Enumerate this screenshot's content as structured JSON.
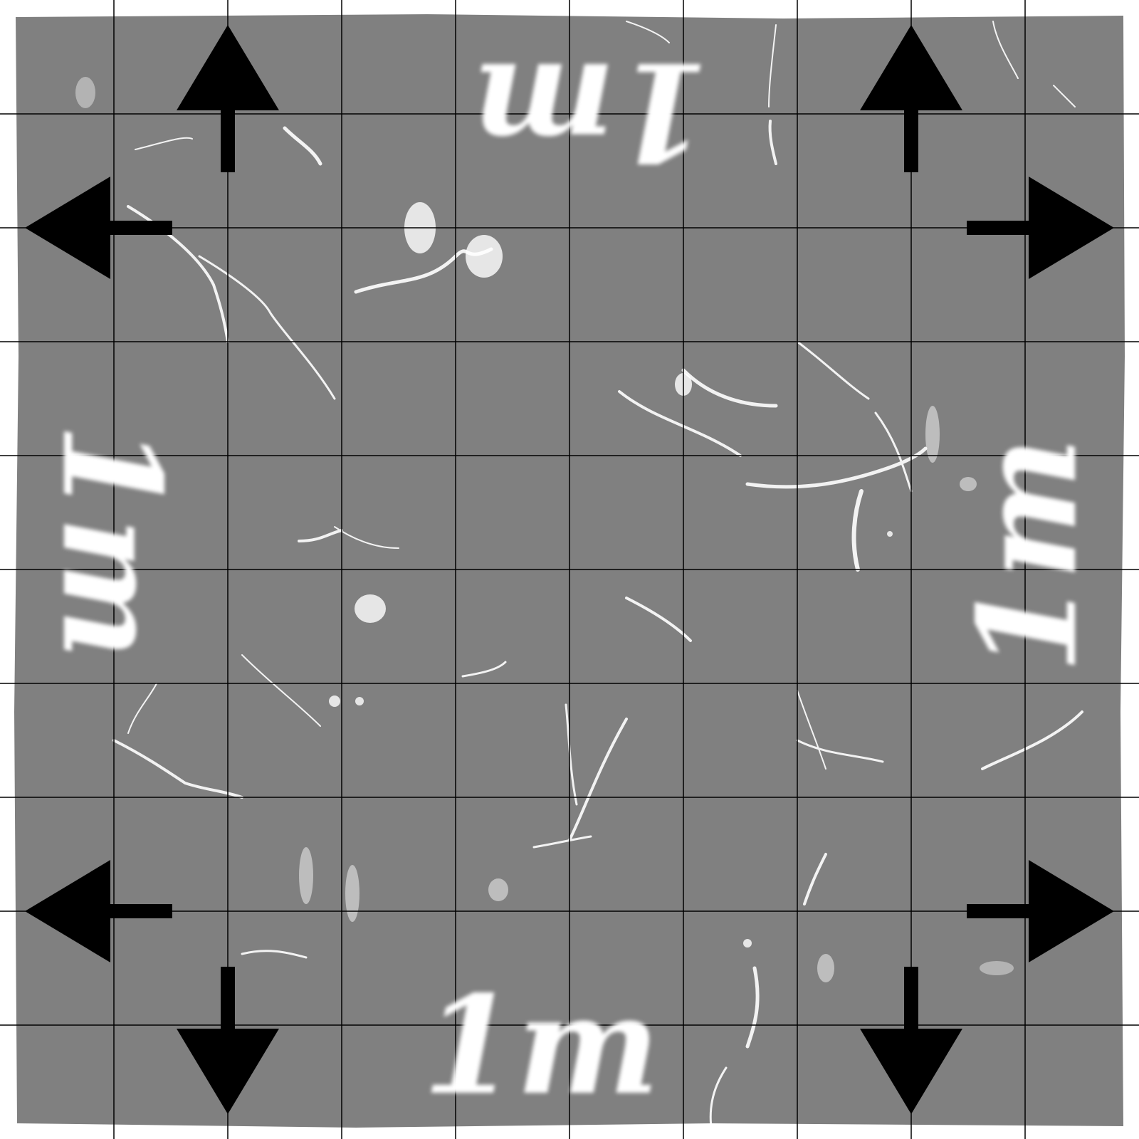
{
  "labels": {
    "top": "1m",
    "bottom": "1m",
    "left": "1m",
    "right": "1m"
  },
  "grid": {
    "columns": 10,
    "rows": 10
  },
  "colors": {
    "board": "#808080",
    "border": "#ffffff",
    "grid_line": "#000000",
    "arrow": "#000000",
    "label": "#ffffff",
    "cracks": "#ffffff"
  },
  "icons": {
    "arrow": "arrow-icon"
  }
}
